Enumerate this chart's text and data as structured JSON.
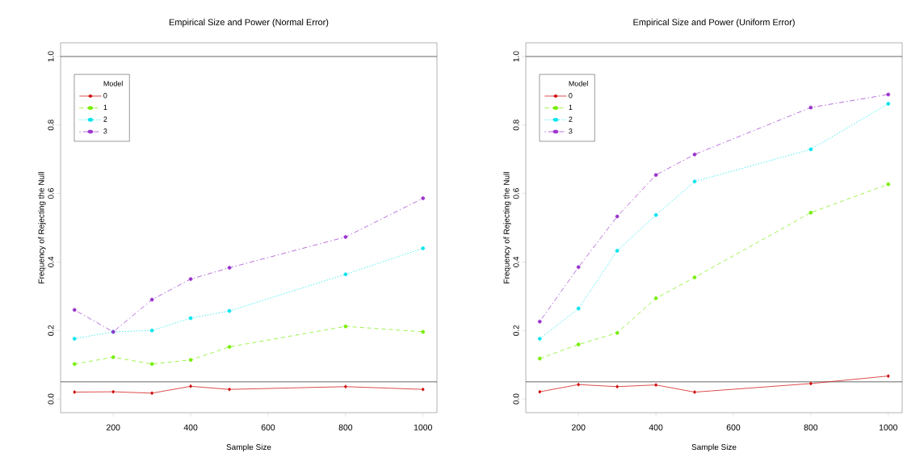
{
  "chart_data": [
    {
      "type": "line",
      "title": "Empirical Size and Power (Normal Error)",
      "xlabel": "Sample Size",
      "ylabel": "Frequency of Rejecting the Null",
      "legend_title": "Model",
      "legend": "top left",
      "grid": false,
      "x": [
        100,
        200,
        300,
        400,
        500,
        800,
        1000
      ],
      "xlim": [
        64,
        1036
      ],
      "xticks": [
        200,
        400,
        600,
        800,
        1000
      ],
      "ylim": [
        -0.04,
        1.04
      ],
      "yticks": [
        {
          "value": 0,
          "label": "0.0"
        },
        {
          "value": 0.2,
          "label": "0.2"
        },
        {
          "value": 0.4,
          "label": "0.4"
        },
        {
          "value": 0.6,
          "label": "0.6"
        },
        {
          "value": 0.8,
          "label": "0.8"
        },
        {
          "value": 1.0,
          "label": "1.0"
        }
      ],
      "ref_lines": [
        {
          "axis": "y",
          "value": 0.05,
          "color": "#000000"
        },
        {
          "axis": "y",
          "value": 1.0,
          "color": "#000000"
        }
      ],
      "series": [
        {
          "name": "0",
          "color": "#cd0000",
          "marker": "diamond",
          "line_style": "solid",
          "values": [
            0.02,
            0.021,
            0.017,
            0.037,
            0.028,
            0.036,
            0.028
          ]
        },
        {
          "name": "1",
          "color": "#76ee00",
          "marker": "circle",
          "line_style": "dashed",
          "values": [
            0.102,
            0.122,
            0.102,
            0.114,
            0.152,
            0.212,
            0.196
          ]
        },
        {
          "name": "2",
          "color": "#00e5ee",
          "marker": "circle",
          "line_style": "dotted",
          "values": [
            0.176,
            0.196,
            0.2,
            0.236,
            0.257,
            0.364,
            0.44
          ]
        },
        {
          "name": "3",
          "color": "#9a32cd",
          "marker": "circle",
          "line_style": "dashdot",
          "values": [
            0.26,
            0.196,
            0.29,
            0.35,
            0.383,
            0.473,
            0.586
          ]
        }
      ]
    },
    {
      "type": "line",
      "title": "Empirical Size and Power (Uniform Error)",
      "xlabel": "Sample Size",
      "ylabel": "Frequency of Rejecting the Null",
      "legend_title": "Model",
      "legend": "top left",
      "grid": false,
      "x": [
        100,
        200,
        300,
        400,
        500,
        800,
        1000
      ],
      "xlim": [
        64,
        1036
      ],
      "xticks": [
        200,
        400,
        600,
        800,
        1000
      ],
      "ylim": [
        -0.04,
        1.04
      ],
      "yticks": [
        {
          "value": 0,
          "label": "0.0"
        },
        {
          "value": 0.2,
          "label": "0.2"
        },
        {
          "value": 0.4,
          "label": "0.4"
        },
        {
          "value": 0.6,
          "label": "0.6"
        },
        {
          "value": 0.8,
          "label": "0.8"
        },
        {
          "value": 1.0,
          "label": "1.0"
        }
      ],
      "ref_lines": [
        {
          "axis": "y",
          "value": 0.05,
          "color": "#000000"
        },
        {
          "axis": "y",
          "value": 1.0,
          "color": "#000000"
        }
      ],
      "series": [
        {
          "name": "0",
          "color": "#cd0000",
          "marker": "diamond",
          "line_style": "solid",
          "values": [
            0.021,
            0.042,
            0.036,
            0.041,
            0.02,
            0.045,
            0.067
          ]
        },
        {
          "name": "1",
          "color": "#76ee00",
          "marker": "circle",
          "line_style": "dashed",
          "values": [
            0.118,
            0.159,
            0.193,
            0.294,
            0.355,
            0.544,
            0.627
          ]
        },
        {
          "name": "2",
          "color": "#00e5ee",
          "marker": "circle",
          "line_style": "dotted",
          "values": [
            0.176,
            0.264,
            0.433,
            0.537,
            0.635,
            0.729,
            0.862
          ]
        },
        {
          "name": "3",
          "color": "#9a32cd",
          "marker": "circle",
          "line_style": "dashdot",
          "values": [
            0.226,
            0.385,
            0.533,
            0.654,
            0.714,
            0.851,
            0.889
          ]
        }
      ]
    }
  ]
}
